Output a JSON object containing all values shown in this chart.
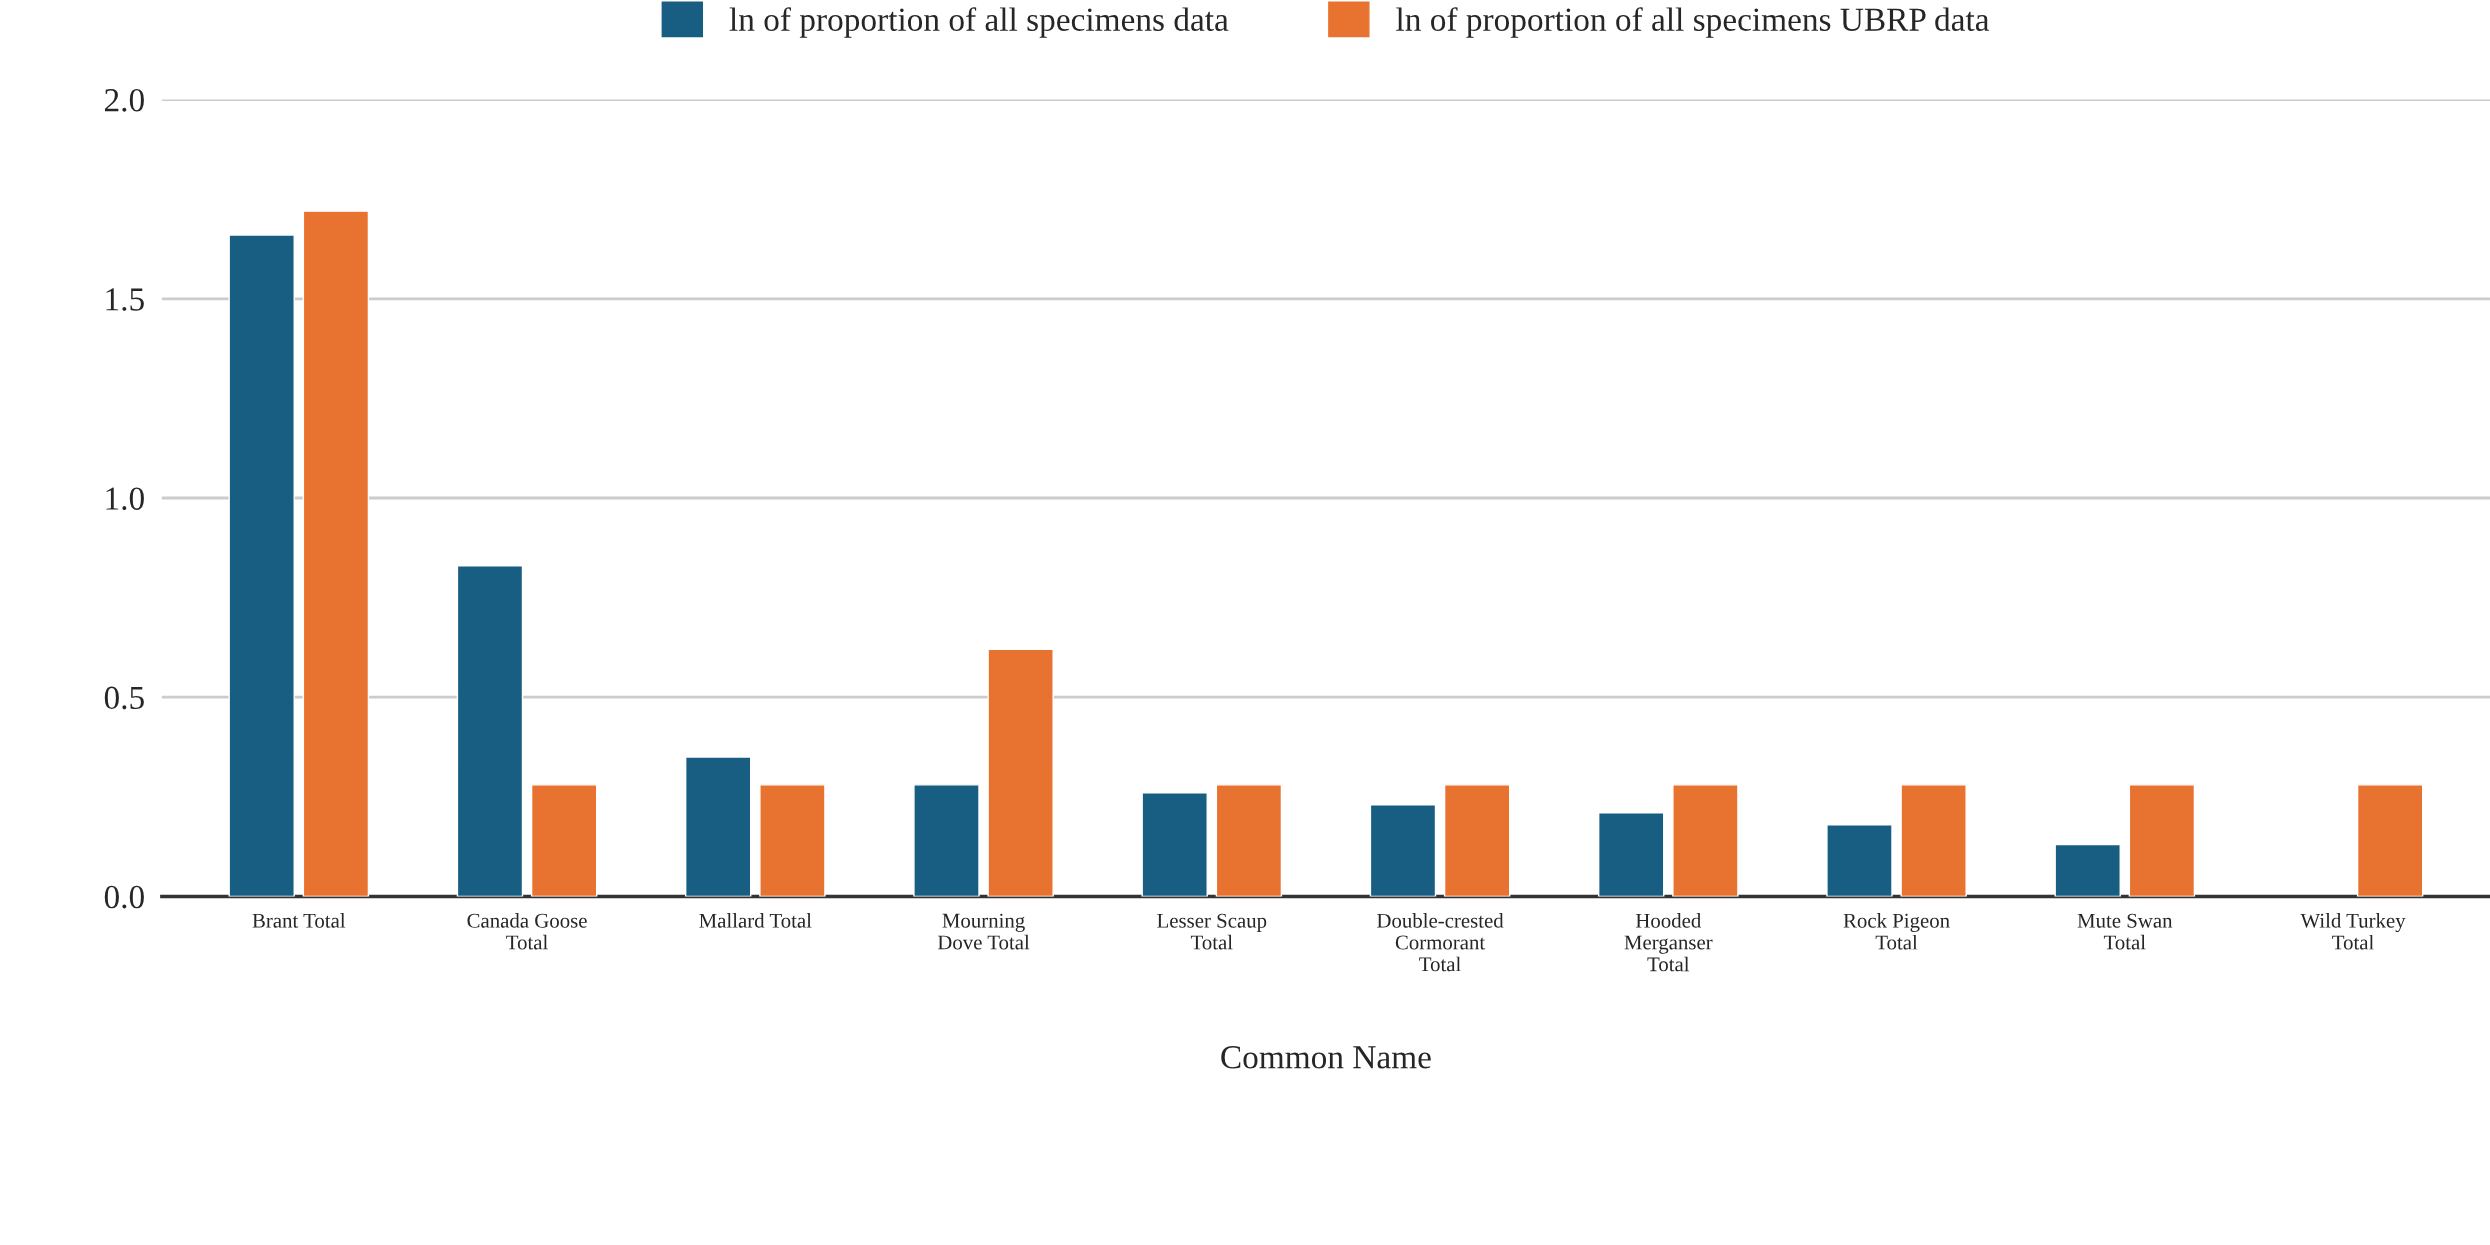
{
  "chart_data": {
    "type": "bar",
    "xlabel": "Common Name",
    "categories": [
      "Brant Total",
      "Canada Goose\nTotal",
      "Mallard Total",
      "Mourning\nDove Total",
      "Lesser Scaup\nTotal",
      "Double-crested\nCormorant\nTotal",
      "Hooded\nMerganser\nTotal",
      "Rock Pigeon\nTotal",
      "Mute Swan\nTotal",
      "Wild Turkey\nTotal"
    ],
    "series": [
      {
        "name": "ln of proportion of all specimens data",
        "color": "#175e82",
        "values": [
          1.66,
          0.83,
          0.35,
          0.28,
          0.26,
          0.23,
          0.21,
          0.18,
          0.13,
          null
        ]
      },
      {
        "name": "ln of proportion of all specimens UBRP data",
        "color": "#e87331",
        "values": [
          1.72,
          0.28,
          0.28,
          0.62,
          0.28,
          0.28,
          0.28,
          0.28,
          0.28,
          0.28
        ]
      }
    ],
    "ylim": [
      0,
      2.0
    ],
    "yticks": [
      {
        "value": 0,
        "label": "0.0"
      },
      {
        "value": 0.5,
        "label": "0.5"
      },
      {
        "value": 1.0,
        "label": "1.0"
      },
      {
        "value": 1.5,
        "label": "1.5"
      },
      {
        "value": 2.0,
        "label": "2.0"
      }
    ],
    "grid": "y",
    "legend": "top"
  }
}
